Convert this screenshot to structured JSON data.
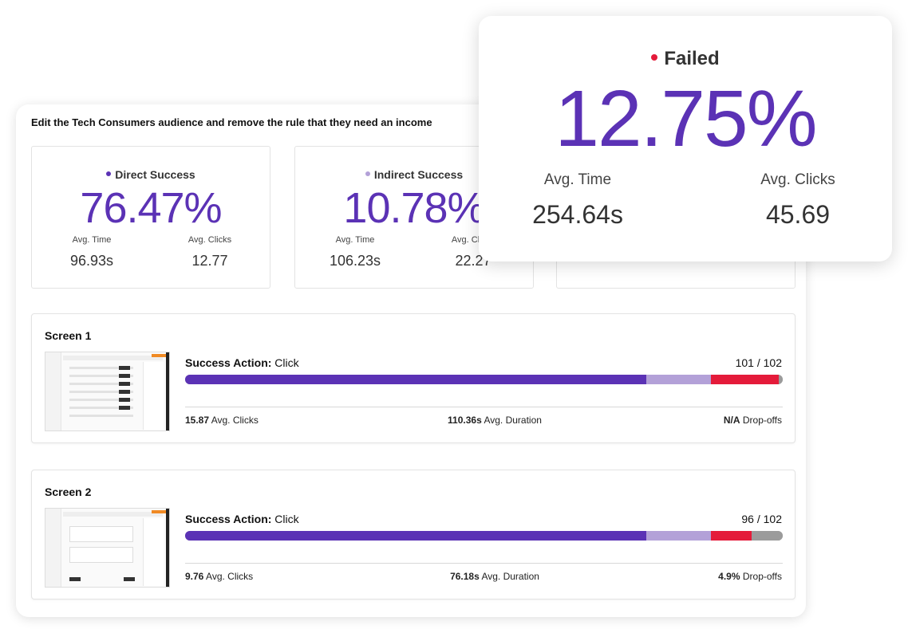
{
  "task": {
    "title": "Edit the Tech Consumers audience and remove the rule that they need an income"
  },
  "colors": {
    "direct": "#5b32b5",
    "indirect": "#b3a1d8",
    "failed": "#e41b3a",
    "dropoff": "#9b9b9b"
  },
  "stats": [
    {
      "label": "Direct Success",
      "percent": "76.47%",
      "avg_time_label": "Avg. Time",
      "avg_time": "96.93s",
      "avg_clicks_label": "Avg. Clicks",
      "avg_clicks": "12.77"
    },
    {
      "label": "Indirect Success",
      "percent": "10.78%",
      "avg_time_label": "Avg. Time",
      "avg_time": "106.23s",
      "avg_clicks_label": "Avg. Clicks",
      "avg_clicks": "22.27"
    }
  ],
  "failed": {
    "label": "Failed",
    "percent": "12.75%",
    "avg_time_label": "Avg. Time",
    "avg_time": "254.64s",
    "avg_clicks_label": "Avg. Clicks",
    "avg_clicks": "45.69"
  },
  "screens": [
    {
      "title": "Screen 1",
      "success_action_label": "Success Action:",
      "success_action_value": "Click",
      "ratio": "101 / 102",
      "bar": {
        "direct": 0.772,
        "indirect": 0.108,
        "failed": 0.113,
        "dropoff": 0.007
      },
      "avg_clicks": "15.87",
      "avg_clicks_label": "Avg. Clicks",
      "avg_duration": "110.36s",
      "avg_duration_label": "Avg. Duration",
      "dropoffs": "N/A",
      "dropoffs_label": "Drop-offs"
    },
    {
      "title": "Screen 2",
      "success_action_label": "Success Action:",
      "success_action_value": "Click",
      "ratio": "96 / 102",
      "bar": {
        "direct": 0.772,
        "indirect": 0.108,
        "failed": 0.068,
        "dropoff": 0.052
      },
      "avg_clicks": "9.76",
      "avg_clicks_label": "Avg. Clicks",
      "avg_duration": "76.18s",
      "avg_duration_label": "Avg. Duration",
      "dropoffs": "4.9%",
      "dropoffs_label": "Drop-offs"
    }
  ]
}
